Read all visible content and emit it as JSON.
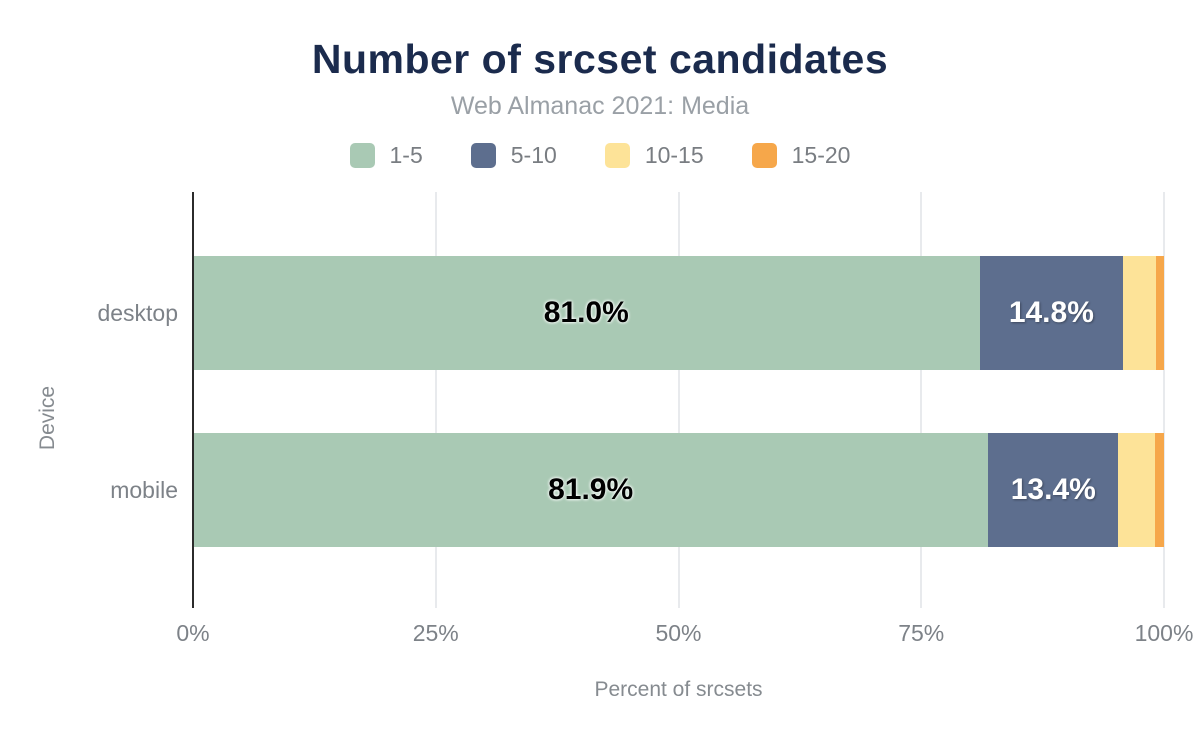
{
  "chart": {
    "title": "Number of srcset candidates",
    "subtitle": "Web Almanac 2021: Media",
    "xlabel": "Percent of srcsets",
    "ylabel": "Device"
  },
  "chart_data": {
    "type": "bar",
    "orientation": "horizontal",
    "stacked": true,
    "title": "Number of srcset candidates",
    "subtitle": "Web Almanac 2021: Media",
    "xlabel": "Percent of srcsets",
    "ylabel": "Device",
    "categories": [
      "desktop",
      "mobile"
    ],
    "series": [
      {
        "name": "1-5",
        "color": "#a9c9b4",
        "label_style": "dark",
        "values": [
          81.0,
          81.9
        ],
        "labels": [
          "81.0%",
          "81.9%"
        ]
      },
      {
        "name": "5-10",
        "color": "#5d6e8e",
        "label_style": "light",
        "values": [
          14.8,
          13.4
        ],
        "labels": [
          "14.8%",
          "13.4%"
        ]
      },
      {
        "name": "10-15",
        "color": "#fde398",
        "label_style": "dark",
        "values": [
          3.4,
          3.8
        ],
        "labels": [
          "",
          ""
        ]
      },
      {
        "name": "15-20",
        "color": "#f6a74a",
        "label_style": "dark",
        "values": [
          0.8,
          0.9
        ],
        "labels": [
          "",
          ""
        ]
      }
    ],
    "x_ticks": [
      {
        "pos": 0,
        "label": "0%"
      },
      {
        "pos": 25,
        "label": "25%"
      },
      {
        "pos": 50,
        "label": "50%"
      },
      {
        "pos": 75,
        "label": "75%"
      },
      {
        "pos": 100,
        "label": "100%"
      }
    ],
    "xlim": [
      0,
      100
    ],
    "grid": true,
    "legend_position": "top",
    "colors": {
      "title": "#1b2b4d",
      "subtitle": "#9aa0a6",
      "axis_text": "#7d8288",
      "gridline": "#e8eaed",
      "axis_line": "#2b2b2b"
    }
  }
}
